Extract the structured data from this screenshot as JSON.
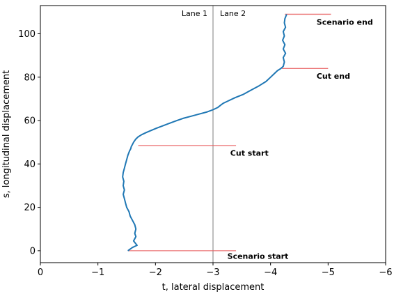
{
  "chart_data": {
    "type": "line",
    "title": "",
    "xlabel": "t, lateral displacement",
    "ylabel": "s, longitudinal displacement",
    "xlim": [
      0,
      -6
    ],
    "ylim": [
      -5.5,
      113
    ],
    "x_ticks": [
      0,
      -1,
      -2,
      -3,
      -4,
      -5,
      -6
    ],
    "x_tick_labels": [
      "0",
      "−1",
      "−2",
      "−3",
      "−4",
      "−5",
      "−6"
    ],
    "y_ticks": [
      0,
      20,
      40,
      60,
      80,
      100
    ],
    "y_tick_labels": [
      "0",
      "20",
      "40",
      "60",
      "80",
      "100"
    ],
    "grid": false,
    "colors": {
      "trajectory": "#1f77b4",
      "events": "#e8595a",
      "lane_divider": "#a9a9a9"
    },
    "lane_divider": {
      "x": -3.0,
      "labels": [
        "Lane 1",
        "Lane 2"
      ]
    },
    "series": [
      {
        "x": [
          -1.52,
          -1.6,
          -1.68,
          -1.62,
          -1.66,
          -1.64,
          -1.66,
          -1.64,
          -1.6,
          -1.56,
          -1.54,
          -1.5,
          -1.48,
          -1.46,
          -1.44,
          -1.46,
          -1.44,
          -1.45,
          -1.43,
          -1.44,
          -1.46,
          -1.48,
          -1.5,
          -1.52,
          -1.55,
          -1.57,
          -1.58,
          -1.6,
          -1.61,
          -1.62,
          -1.64,
          -1.66,
          -1.7,
          -1.76,
          -1.84,
          -1.93,
          -2.02,
          -2.12,
          -2.22,
          -2.35,
          -2.48,
          -2.62,
          -2.76,
          -2.9,
          -3.0,
          -3.08,
          -3.13,
          -3.18,
          -3.26,
          -3.38,
          -3.52,
          -3.66,
          -3.8,
          -3.92,
          -4.0,
          -4.06,
          -4.12,
          -4.18,
          -4.22,
          -4.24,
          -4.22,
          -4.26,
          -4.22,
          -4.25,
          -4.21,
          -4.24,
          -4.22,
          -4.26,
          -4.24,
          -4.25,
          -4.28
        ],
        "y": [
          0,
          1.5,
          2.5,
          4.5,
          6.5,
          8,
          10,
          12,
          14,
          16,
          18,
          20,
          22,
          24,
          26,
          28,
          30,
          32,
          34,
          36,
          38,
          40,
          42,
          44,
          46,
          47,
          48,
          49,
          49.5,
          50,
          50.8,
          51.5,
          52.5,
          53.5,
          54.5,
          55.5,
          56.5,
          57.5,
          58.5,
          59.8,
          61,
          62,
          63,
          64,
          65,
          66,
          67,
          68,
          69,
          70.5,
          72,
          74,
          76,
          78,
          80,
          81.5,
          83,
          84,
          85,
          87,
          89,
          91,
          93,
          95,
          97,
          99,
          101,
          103,
          105,
          107,
          109
        ]
      }
    ],
    "events": [
      {
        "label": "Scenario start",
        "y": 0,
        "x_from": -1.52,
        "x_to": -3.4,
        "label_x": -3.25,
        "label_y": -2.5
      },
      {
        "label": "Cut start",
        "y": 48.5,
        "x_from": -1.7,
        "x_to": -3.4,
        "label_x": -3.3,
        "label_y": 45
      },
      {
        "label": "Cut end",
        "y": 84,
        "x_from": -4.2,
        "x_to": -5.0,
        "label_x": -4.8,
        "label_y": 80.5
      },
      {
        "label": "Scenario end",
        "y": 109,
        "x_from": -4.25,
        "x_to": -5.05,
        "label_x": -4.8,
        "label_y": 105.5
      }
    ]
  }
}
